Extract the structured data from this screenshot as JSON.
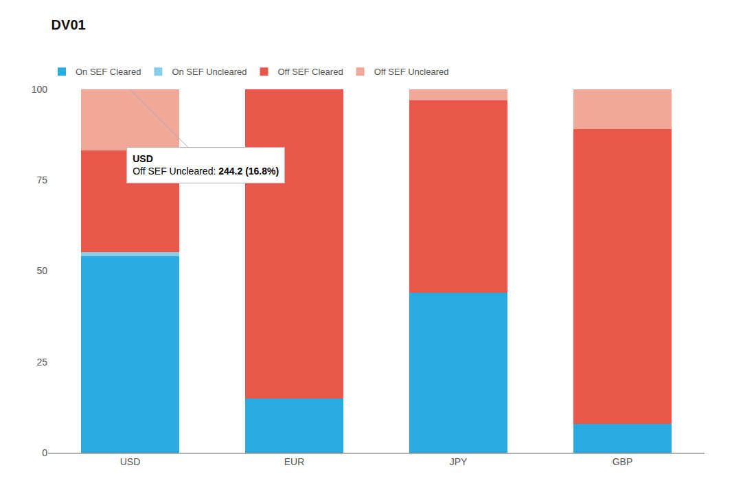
{
  "chart_data": {
    "type": "bar",
    "title": "DV01",
    "categories": [
      "USD",
      "EUR",
      "JPY",
      "GBP"
    ],
    "series": [
      {
        "name": "On SEF Cleared",
        "color": "#29ABE2",
        "values": [
          54.0,
          15.0,
          44.0,
          8.0
        ]
      },
      {
        "name": "On SEF Uncleared",
        "color": "#87CEEB",
        "values": [
          1.2,
          0.0,
          0.0,
          0.0
        ]
      },
      {
        "name": "Off SEF Cleared",
        "color": "#E8574A",
        "values": [
          28.0,
          85.0,
          53.0,
          81.0
        ]
      },
      {
        "name": "Off SEF Uncleared",
        "color": "#F0A898",
        "values": [
          16.8,
          0.0,
          3.0,
          11.0
        ]
      }
    ],
    "stacked": true,
    "ylim": [
      0,
      100
    ],
    "yticks": [
      0,
      25,
      50,
      75,
      100
    ],
    "grid": false,
    "legend": "upper left",
    "annotations": [
      {
        "category": "USD",
        "header": "USD",
        "label": "Off SEF Uncleared: ",
        "value": "244.2 (16.8%)"
      }
    ]
  }
}
